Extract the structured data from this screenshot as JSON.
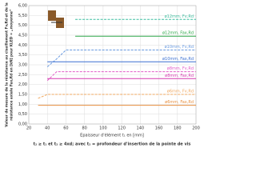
{
  "chart_data": {
    "type": "line",
    "ylabel": [
      "Valeur de mesure de la résistance au cisaillement Fv,Rd et de la",
      "résistance axiale Fax,Rd en [kN] pour KLED = „moyenne“"
    ],
    "xlabel": "Epaisseur d'élément t₁ en [mm]",
    "note": "t₂ ≥ t₁ et t₂ ≥ 4xd; avec t₂ = profondeur d'insertion de la pointe de vis",
    "x": [
      30,
      40,
      50,
      60,
      70,
      80,
      200
    ],
    "series": [
      {
        "name": "ø12mm, Fv,Rd",
        "color": "#3fbfa0",
        "dashed": true,
        "values": [
          null,
          null,
          null,
          null,
          5.3,
          5.3,
          5.3
        ]
      },
      {
        "name": "ø12mm, Fax,Rd",
        "color": "#2ea84a",
        "dashed": false,
        "values": [
          null,
          null,
          null,
          null,
          4.45,
          4.45,
          4.45
        ]
      },
      {
        "name": "ø10mm, Fv,Rd",
        "color": "#6a9be0",
        "dashed": true,
        "values": [
          null,
          2.9,
          3.3,
          3.75,
          3.75,
          3.75,
          3.75
        ]
      },
      {
        "name": "ø10mm, Fax,Rd",
        "color": "#3a6fd0",
        "dashed": false,
        "values": [
          null,
          3.15,
          3.15,
          3.15,
          3.15,
          3.15,
          3.15
        ]
      },
      {
        "name": "ø8mm, Fv,Rd",
        "color": "#e25cc8",
        "dashed": true,
        "values": [
          null,
          2.2,
          2.65,
          2.65,
          2.65,
          2.65,
          2.65
        ]
      },
      {
        "name": "ø8mm, Fax,Rd",
        "color": "#d63ab0",
        "dashed": false,
        "values": [
          null,
          2.3,
          2.3,
          2.3,
          2.3,
          2.3,
          2.3
        ]
      },
      {
        "name": "ø6mm, Fv,Rd",
        "color": "#f0a860",
        "dashed": true,
        "values": [
          1.3,
          1.5,
          1.5,
          1.5,
          1.5,
          1.5,
          1.5
        ]
      },
      {
        "name": "ø6mm, Fax,Rd",
        "color": "#e89040",
        "dashed": false,
        "values": [
          0.95,
          0.95,
          0.95,
          0.95,
          0.95,
          0.95,
          0.95
        ]
      }
    ],
    "xlim": [
      20,
      200
    ],
    "xticks": [
      20,
      40,
      60,
      80,
      100,
      120,
      140,
      160,
      180,
      200
    ],
    "ylim": [
      0,
      6
    ],
    "yticks": [
      {
        "value": 0,
        "label": "0,00"
      },
      {
        "value": 0.5,
        "label": "0,50"
      },
      {
        "value": 1,
        "label": "1,00"
      },
      {
        "value": 1.5,
        "label": "1,50"
      },
      {
        "value": 2,
        "label": "2,00"
      },
      {
        "value": 2.5,
        "label": "2,50"
      },
      {
        "value": 3,
        "label": "3,00"
      },
      {
        "value": 3.5,
        "label": "3,50"
      },
      {
        "value": 4,
        "label": "4,00"
      },
      {
        "value": 4.5,
        "label": "4,50"
      },
      {
        "value": 5,
        "label": "5,00"
      },
      {
        "value": 5.5,
        "label": "5,50"
      },
      {
        "value": 6,
        "label": "6,00"
      }
    ],
    "grid": true
  }
}
